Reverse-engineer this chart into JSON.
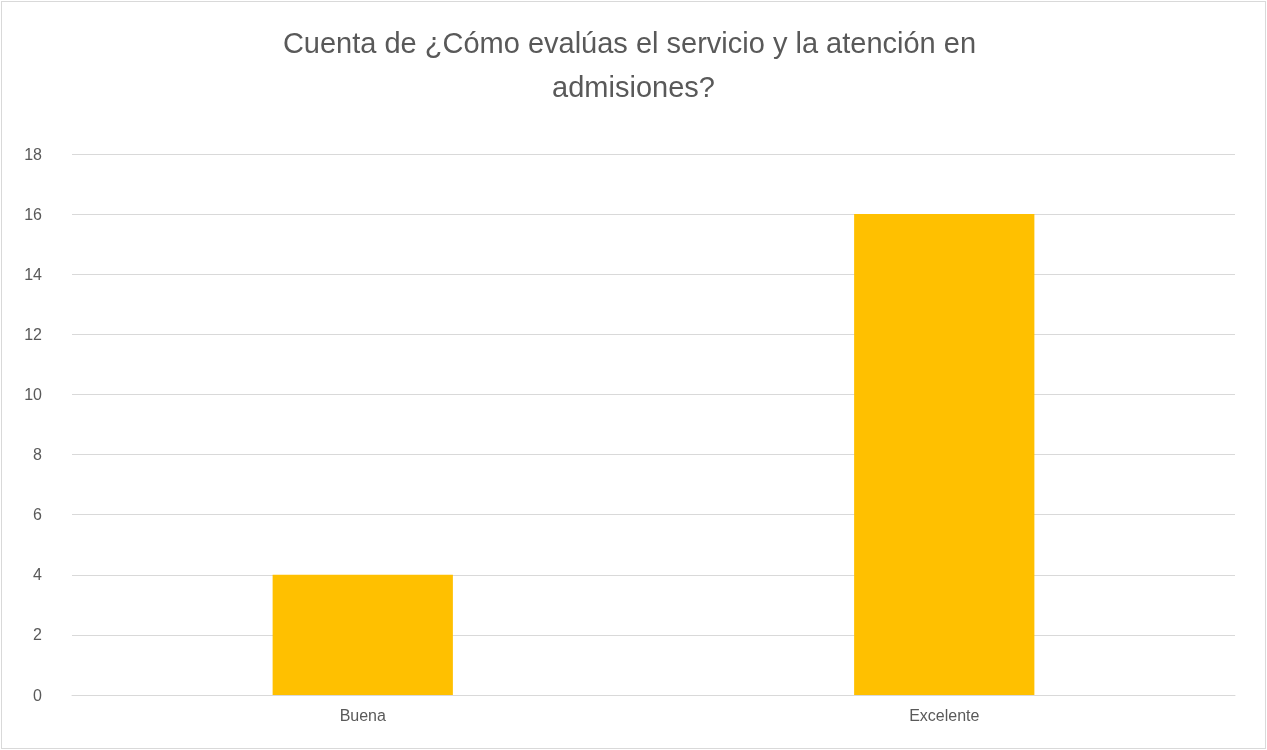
{
  "chart_data": {
    "type": "bar",
    "title": "Cuenta de ¿Cómo evalúas el servicio y la atención en admisiones?",
    "categories": [
      "Buena",
      "Excelente"
    ],
    "values": [
      4,
      16
    ],
    "color": "#ffc000",
    "ylim": [
      0,
      18
    ],
    "yticks": [
      0,
      2,
      4,
      6,
      8,
      10,
      12,
      14,
      16,
      18
    ],
    "grid": "y"
  }
}
